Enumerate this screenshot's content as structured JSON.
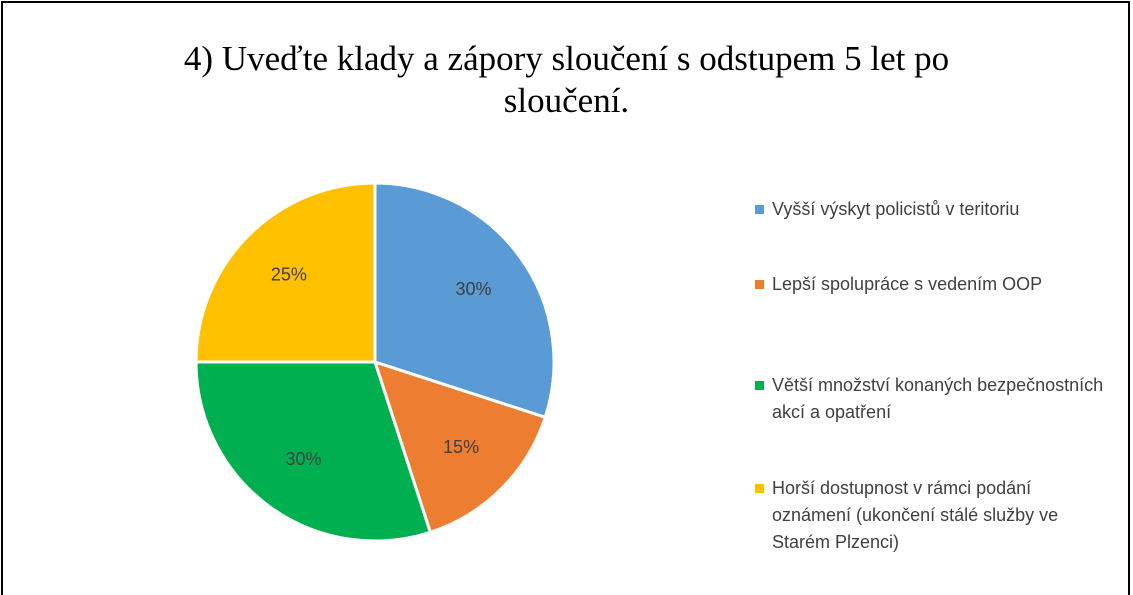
{
  "chart_data": {
    "type": "pie",
    "title": "4) Uveďte klady a zápory sloučení s odstupem 5 let po sloučení.",
    "categories": [
      "Vyšší výskyt policistů v teritoriu",
      "Lepší spolupráce s vedením OOP",
      "Větší množství konaných bezpečnostních akcí a opatření",
      "Horší dostupnost v rámci podání oznámení (ukončení stálé služby ve Starém Plzenci)"
    ],
    "values": [
      30,
      15,
      30,
      25
    ],
    "value_labels": [
      "30%",
      "15%",
      "30%",
      "25%"
    ],
    "colors": [
      "#5b9bd5",
      "#ed7d31",
      "#00b050",
      "#ffc000"
    ],
    "legend": "right"
  }
}
